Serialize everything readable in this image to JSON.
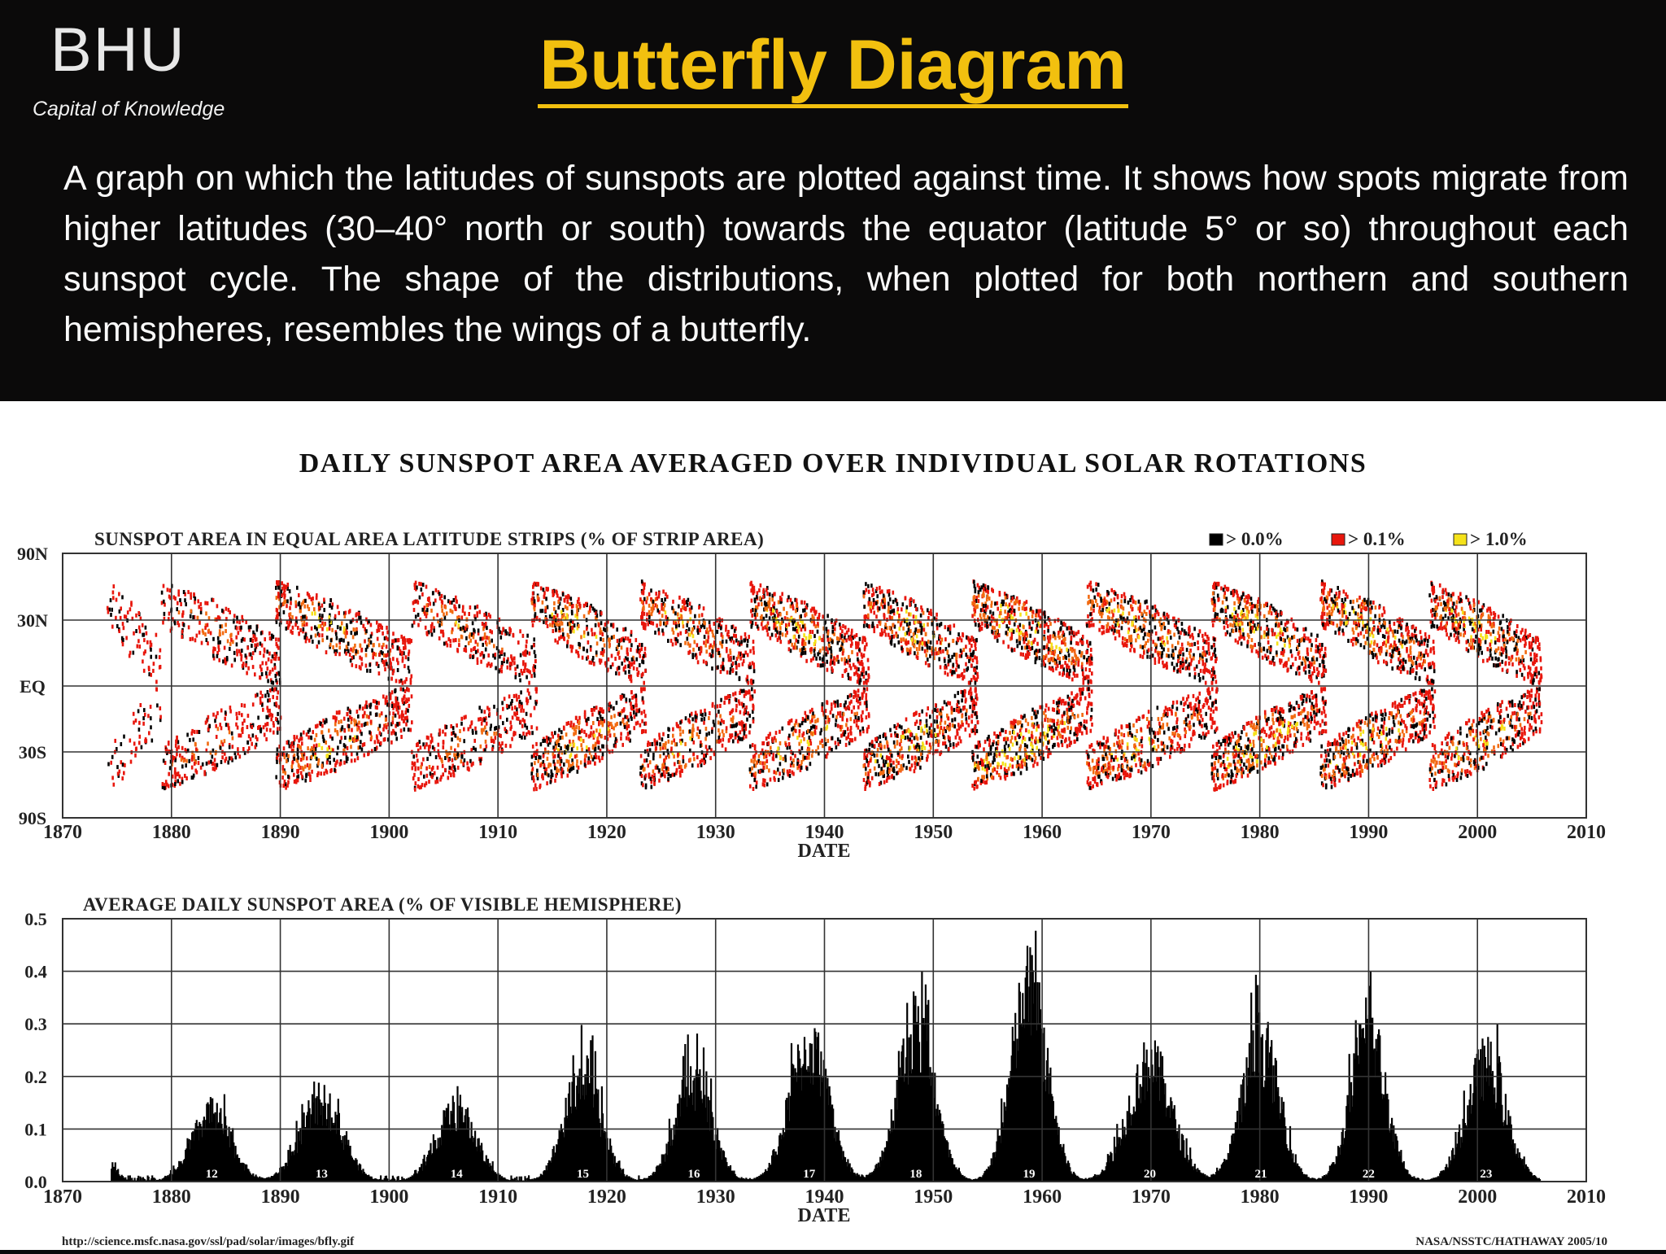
{
  "slide": {
    "logo_text": "BHU",
    "tagline": "Capital of Knowledge",
    "title": "Butterfly Diagram",
    "description": "A graph on which the latitudes of sunspots are plotted against time. It shows how spots migrate from higher latitudes (30–40° north or south) towards the equator (latitude 5° or so) throughout each sunspot cycle. The shape of the distributions, when plotted for both northern and southern hemispheres, resembles the wings of a butterfly."
  },
  "figure": {
    "main_title": "DAILY SUNSPOT AREA AVERAGED OVER INDIVIDUAL SOLAR ROTATIONS",
    "source_url": "http://science.msfc.nasa.gov/ssl/pad/solar/images/bfly.gif",
    "credit": "NASA/NSSTC/HATHAWAY 2005/10"
  },
  "colors": {
    "title_yellow": "#f2c00f",
    "header_bg": "#0b0a0a",
    "black": "#000000",
    "red": "#e8160c",
    "yellow": "#f5e21a",
    "orange": "#f26a10"
  },
  "chart_data": [
    {
      "type": "heatmap",
      "title": "SUNSPOT AREA IN EQUAL AREA LATITUDE STRIPS (% OF STRIP AREA)",
      "xlabel": "DATE",
      "ylabel": "",
      "xlim": [
        1870,
        2010
      ],
      "x_ticks": [
        "1870",
        "1880",
        "1890",
        "1900",
        "1910",
        "1920",
        "1930",
        "1940",
        "1950",
        "1960",
        "1970",
        "1980",
        "1990",
        "2000",
        "2010"
      ],
      "y_ticks": [
        "90N",
        "30N",
        "EQ",
        "30S",
        "90S"
      ],
      "legend": [
        {
          "label": "> 0.0%",
          "color": "#000000"
        },
        {
          "label": "> 0.1%",
          "color": "#e8160c"
        },
        {
          "label": "> 1.0%",
          "color": "#f5e21a"
        }
      ],
      "legend_position": "top-right",
      "grid": true,
      "cycles": [
        {
          "start": 1874.0,
          "end": 1879.0,
          "intensity": 0.3
        },
        {
          "start": 1879.0,
          "end": 1890.0,
          "intensity": 0.55
        },
        {
          "start": 1889.5,
          "end": 1902.0,
          "intensity": 0.75
        },
        {
          "start": 1902.0,
          "end": 1913.5,
          "intensity": 0.6
        },
        {
          "start": 1913.0,
          "end": 1923.5,
          "intensity": 0.8
        },
        {
          "start": 1923.0,
          "end": 1933.5,
          "intensity": 0.75
        },
        {
          "start": 1933.0,
          "end": 1944.0,
          "intensity": 0.85
        },
        {
          "start": 1943.5,
          "end": 1954.0,
          "intensity": 0.9
        },
        {
          "start": 1953.5,
          "end": 1964.5,
          "intensity": 1.0
        },
        {
          "start": 1964.0,
          "end": 1976.0,
          "intensity": 0.85
        },
        {
          "start": 1975.5,
          "end": 1986.0,
          "intensity": 0.95
        },
        {
          "start": 1985.5,
          "end": 1996.0,
          "intensity": 0.95
        },
        {
          "start": 1995.5,
          "end": 2005.8,
          "intensity": 0.85
        }
      ]
    },
    {
      "type": "area",
      "title": "AVERAGE DAILY SUNSPOT AREA (% OF VISIBLE HEMISPHERE)",
      "xlabel": "DATE",
      "ylabel": "",
      "xlim": [
        1870,
        2010
      ],
      "ylim": [
        0.0,
        0.5
      ],
      "x_ticks": [
        "1870",
        "1880",
        "1890",
        "1900",
        "1910",
        "1920",
        "1930",
        "1940",
        "1950",
        "1960",
        "1970",
        "1980",
        "1990",
        "2000",
        "2010"
      ],
      "y_ticks": [
        "0.0",
        "0.1",
        "0.2",
        "0.3",
        "0.4",
        "0.5"
      ],
      "grid": true,
      "cycle_labels": [
        {
          "label": "12",
          "x": 1883.7
        },
        {
          "label": "13",
          "x": 1893.8
        },
        {
          "label": "14",
          "x": 1906.2
        },
        {
          "label": "15",
          "x": 1917.8
        },
        {
          "label": "16",
          "x": 1928.0
        },
        {
          "label": "17",
          "x": 1938.6
        },
        {
          "label": "18",
          "x": 1948.4
        },
        {
          "label": "19",
          "x": 1958.8
        },
        {
          "label": "20",
          "x": 1969.9
        },
        {
          "label": "21",
          "x": 1980.1
        },
        {
          "label": "22",
          "x": 1990.0
        },
        {
          "label": "23",
          "x": 2000.8
        }
      ],
      "cycle_peaks": [
        {
          "x": 1873.0,
          "y": 0.09,
          "width": 2.2
        },
        {
          "x": 1883.7,
          "y": 0.16,
          "width": 3.2
        },
        {
          "x": 1893.8,
          "y": 0.19,
          "width": 3.4
        },
        {
          "x": 1906.2,
          "y": 0.17,
          "width": 3.2
        },
        {
          "x": 1917.8,
          "y": 0.25,
          "width": 3.0
        },
        {
          "x": 1928.0,
          "y": 0.24,
          "width": 3.0
        },
        {
          "x": 1938.6,
          "y": 0.32,
          "width": 3.2
        },
        {
          "x": 1948.4,
          "y": 0.36,
          "width": 3.0
        },
        {
          "x": 1958.8,
          "y": 0.46,
          "width": 2.9
        },
        {
          "x": 1969.9,
          "y": 0.28,
          "width": 3.6
        },
        {
          "x": 1980.1,
          "y": 0.33,
          "width": 3.0
        },
        {
          "x": 1990.0,
          "y": 0.36,
          "width": 2.8
        },
        {
          "x": 2000.8,
          "y": 0.28,
          "width": 3.2
        }
      ]
    }
  ]
}
